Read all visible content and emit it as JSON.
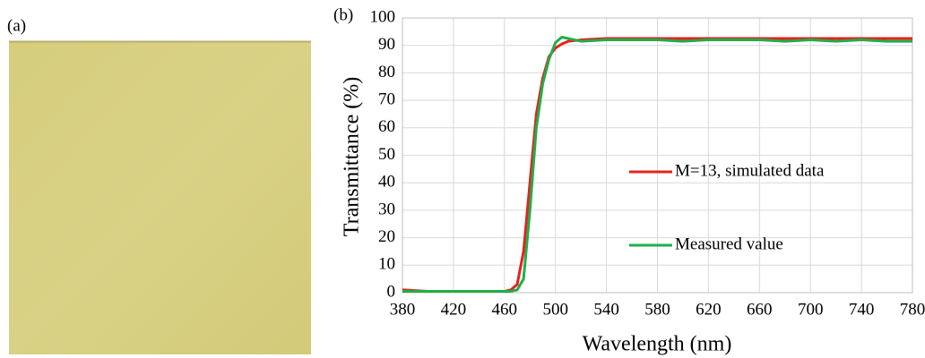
{
  "panel_labels": {
    "a": "(a)",
    "b": "(b)"
  },
  "chart_data": {
    "type": "line",
    "xlabel": "Wavelength (nm)",
    "ylabel": "Transmittance (%)",
    "x": [
      380,
      400,
      420,
      440,
      460,
      465,
      470,
      475,
      480,
      485,
      490,
      495,
      500,
      505,
      510,
      520,
      540,
      560,
      580,
      600,
      620,
      640,
      660,
      680,
      700,
      720,
      740,
      760,
      780
    ],
    "series": [
      {
        "name": "M=13, simulated data",
        "color": "#e8201c",
        "values": [
          1,
          0.5,
          0.5,
          0.5,
          0.5,
          1,
          3,
          15,
          40,
          65,
          78,
          86,
          89,
          90.5,
          91.5,
          92,
          92.5,
          92.5,
          92.5,
          92.5,
          92.5,
          92.5,
          92.5,
          92.5,
          92.5,
          92.5,
          92.5,
          92.5,
          92.5
        ]
      },
      {
        "name": "Measured value",
        "color": "#1fae4a",
        "values": [
          0.5,
          0.5,
          0.5,
          0.5,
          0.5,
          0.5,
          1,
          5,
          30,
          60,
          76,
          85,
          91,
          93,
          92.5,
          91.5,
          92,
          92,
          92,
          91.5,
          92,
          92,
          92,
          91.5,
          92,
          91.5,
          92,
          91.5,
          91.5
        ]
      }
    ],
    "xlim": [
      380,
      780
    ],
    "xticks": [
      380,
      420,
      460,
      500,
      540,
      580,
      620,
      660,
      700,
      740,
      780
    ],
    "ylim": [
      0,
      100
    ],
    "yticks": [
      0,
      10,
      20,
      30,
      40,
      50,
      60,
      70,
      80,
      90,
      100
    ],
    "grid": true
  }
}
